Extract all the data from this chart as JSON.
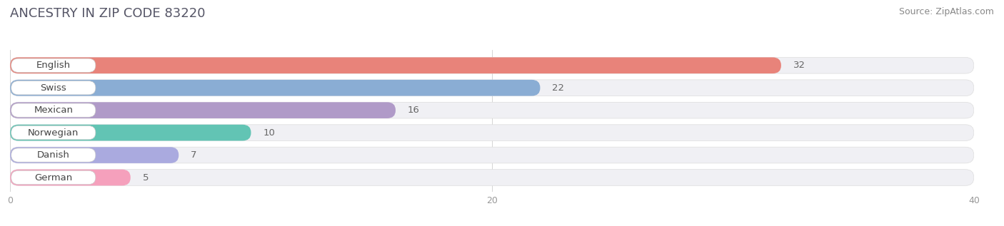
{
  "title": "ANCESTRY IN ZIP CODE 83220",
  "source": "Source: ZipAtlas.com",
  "categories": [
    "English",
    "Swiss",
    "Mexican",
    "Norwegian",
    "Danish",
    "German"
  ],
  "values": [
    32,
    22,
    16,
    10,
    7,
    5
  ],
  "bar_colors": [
    "#e8837a",
    "#8aadd4",
    "#b09ac8",
    "#62c4b4",
    "#aaaadf",
    "#f5a0bc"
  ],
  "xlim": [
    0,
    40
  ],
  "xticks": [
    0,
    20,
    40
  ],
  "background_color": "#ffffff",
  "bar_bg_color": "#f0f0f4",
  "title_fontsize": 13,
  "source_fontsize": 9,
  "label_fontsize": 9.5,
  "value_fontsize": 9.5
}
